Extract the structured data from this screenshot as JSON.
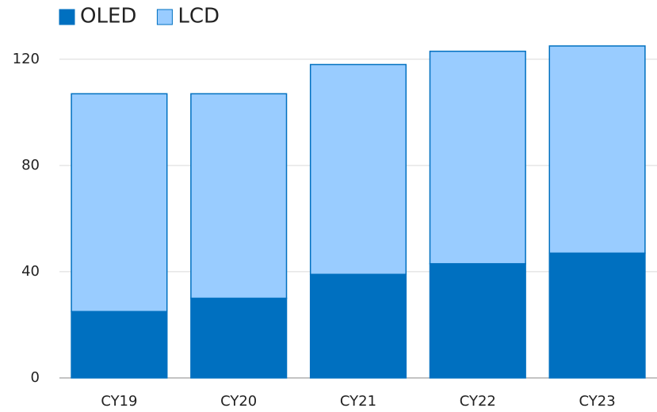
{
  "chart_data": {
    "type": "stacked_bar",
    "categories": [
      "CY19",
      "CY20",
      "CY21",
      "CY22",
      "CY23"
    ],
    "series": [
      {
        "name": "OLED",
        "color": "#0070c0",
        "values": [
          25,
          30,
          39,
          43,
          47
        ]
      },
      {
        "name": "LCD",
        "color": "#99ccff",
        "values": [
          82,
          77,
          79,
          80,
          78
        ]
      }
    ],
    "ylim": [
      0,
      125
    ],
    "yticks": [
      0,
      40,
      80,
      120
    ],
    "grid": true,
    "legend": "top-left"
  }
}
